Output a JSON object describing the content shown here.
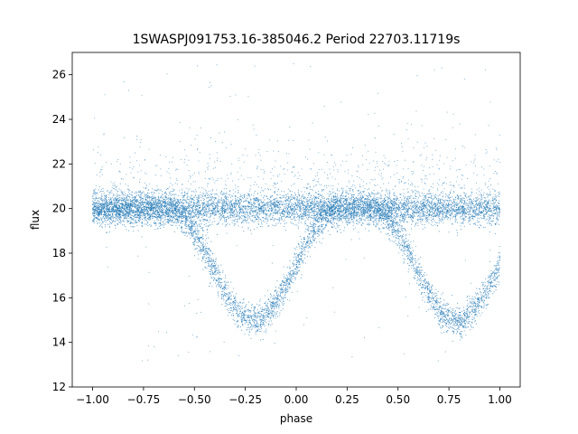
{
  "chart_data": {
    "type": "scatter",
    "title": "1SWASPJ091753.16-385046.2 Period 22703.11719s",
    "xlabel": "phase",
    "ylabel": "flux",
    "xlim": [
      -1.1,
      1.1
    ],
    "ylim": [
      12.0,
      27.0
    ],
    "x_ticks": [
      -1.0,
      -0.75,
      -0.5,
      -0.25,
      0.0,
      0.25,
      0.5,
      0.75,
      1.0
    ],
    "x_tick_labels": [
      "−1.00",
      "−0.75",
      "−0.50",
      "−0.25",
      "0.00",
      "0.25",
      "0.50",
      "0.75",
      "1.00"
    ],
    "y_ticks": [
      12,
      14,
      16,
      18,
      20,
      22,
      24,
      26
    ],
    "y_tick_labels": [
      "12",
      "14",
      "16",
      "18",
      "20",
      "22",
      "24",
      "26"
    ],
    "grid": false,
    "legend": "none",
    "marker_color": "#1f77b4",
    "series": [
      {
        "description_of_distribution": "folded light curve",
        "baseline_flux": 20.0,
        "baseline_scatter": 0.35,
        "eclipse_min_flux": 15.0,
        "eclipse_centers_phase": [
          -0.21,
          0.79
        ],
        "eclipse_half_width_phase": 0.42,
        "eclipse_scatter": 0.35,
        "x_range": [
          -1.0,
          1.0
        ]
      }
    ]
  }
}
